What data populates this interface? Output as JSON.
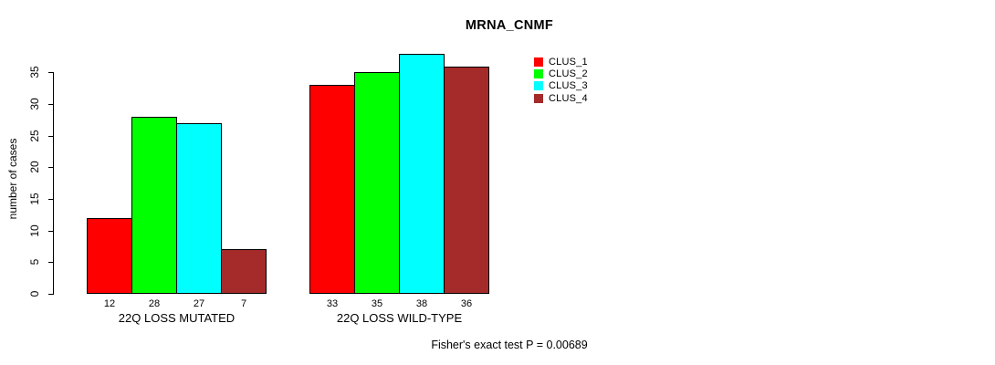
{
  "chart_data": {
    "type": "bar",
    "title": "MRNA_CNMF",
    "ylabel": "number of cases",
    "xlabel": "",
    "categories": [
      "22Q LOSS MUTATED",
      "22Q LOSS WILD-TYPE"
    ],
    "series": [
      {
        "name": "CLUS_1",
        "color": "#FF0000",
        "values": [
          12,
          33
        ]
      },
      {
        "name": "CLUS_2",
        "color": "#00FF00",
        "values": [
          28,
          35
        ]
      },
      {
        "name": "CLUS_3",
        "color": "#00FFFF",
        "values": [
          27,
          38
        ]
      },
      {
        "name": "CLUS_4",
        "color": "#A52A2A",
        "values": [
          7,
          36
        ]
      }
    ],
    "yticks": [
      0,
      5,
      10,
      15,
      20,
      25,
      30,
      35
    ],
    "ylim": [
      0,
      38
    ],
    "grid": false,
    "bar_value_labels_shown": true,
    "legend_position": "right-outside-top",
    "annotation": "Fisher's exact test P = 0.00689",
    "axis_color": "#000000",
    "background_color": "#FFFFFF"
  }
}
